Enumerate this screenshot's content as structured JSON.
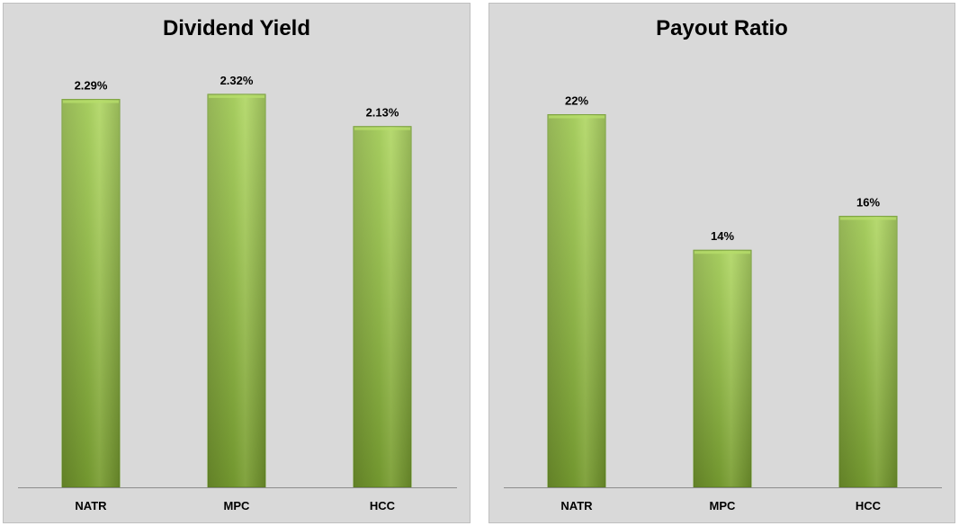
{
  "chart_data": [
    {
      "type": "bar",
      "title": "Dividend Yield",
      "categories": [
        "NATR",
        "MPC",
        "HCC"
      ],
      "values": [
        2.29,
        2.32,
        2.13
      ],
      "value_labels": [
        "2.29%",
        "2.32%",
        "2.13%"
      ],
      "ylim": [
        0,
        2.5
      ],
      "bar_color": "#92c13c",
      "grid": false,
      "legend": "none"
    },
    {
      "type": "bar",
      "title": "Payout Ratio",
      "categories": [
        "NATR",
        "MPC",
        "HCC"
      ],
      "values": [
        22,
        14,
        16
      ],
      "value_labels": [
        "22%",
        "14%",
        "16%"
      ],
      "ylim": [
        0,
        25
      ],
      "bar_color": "#92c13c",
      "grid": false,
      "legend": "none"
    }
  ]
}
